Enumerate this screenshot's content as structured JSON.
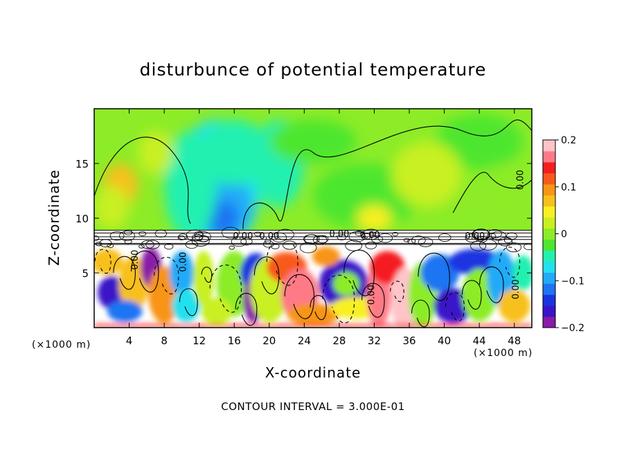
{
  "chart_data": {
    "type": "heatmap",
    "title": "disturbunce of potential temperature",
    "xlabel": "X-coordinate",
    "ylabel": "Z-coordinate",
    "x_unit_left": "(×1000 m)",
    "x_unit_right": "(×1000 m)",
    "note": "CONTOUR INTERVAL = 3.000E-01",
    "xlim": [
      0,
      50
    ],
    "ylim": [
      0,
      20
    ],
    "x_ticks": [
      "4",
      "8",
      "12",
      "16",
      "20",
      "24",
      "28",
      "32",
      "36",
      "40",
      "44",
      "48"
    ],
    "x_tick_values": [
      4,
      8,
      12,
      16,
      20,
      24,
      28,
      32,
      36,
      40,
      44,
      48
    ],
    "y_ticks": [
      "5",
      "10",
      "15"
    ],
    "y_tick_values": [
      5,
      10,
      15
    ],
    "colorbar": {
      "range": [
        -0.2,
        0.2
      ],
      "tick_labels": [
        "0.2",
        "0.1",
        "0",
        "−0.1",
        "−0.2"
      ],
      "tick_values": [
        0.2,
        0.1,
        0,
        -0.1,
        -0.2
      ],
      "colors": [
        "#8a1aa8",
        "#3a14c8",
        "#1a34e0",
        "#1e74f2",
        "#22aaf8",
        "#22e0ee",
        "#22f0b0",
        "#4ee62e",
        "#8cec28",
        "#c8f020",
        "#f8f024",
        "#f8c01c",
        "#f89418",
        "#f85a1c",
        "#f41e20",
        "#ff7a86",
        "#ffc4c8"
      ]
    },
    "contour_labels": [
      "0.00",
      "0.00",
      "0.00",
      "0.00",
      "0.00",
      "0.00",
      "0.00",
      "0.00",
      "0.00",
      "0.00"
    ],
    "cloud_layer_bottom": 7.6,
    "cloud_layer_top": 8.9
  }
}
